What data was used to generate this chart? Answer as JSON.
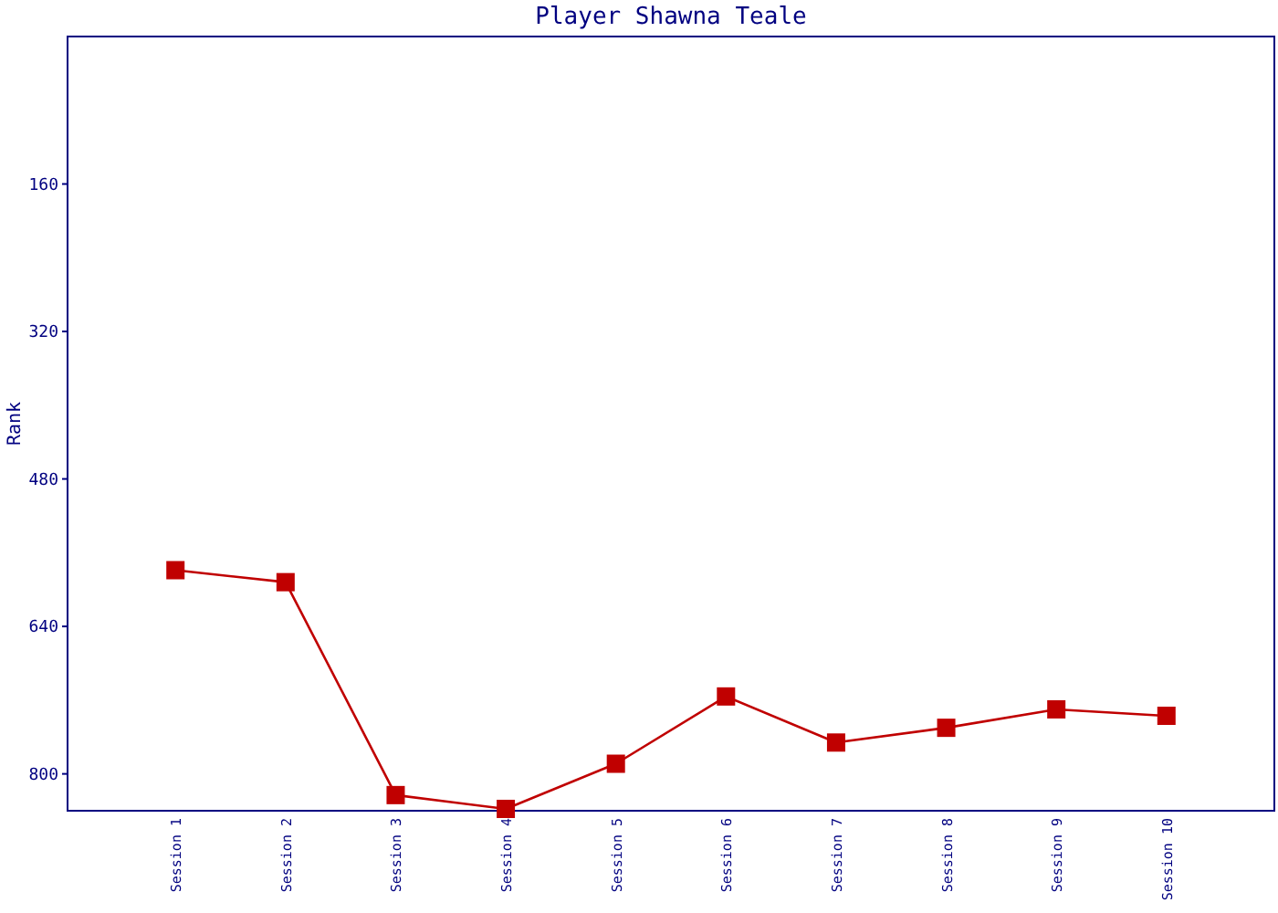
{
  "chart_data": {
    "type": "line",
    "title": "Player Shawna Teale",
    "ylabel": "Rank",
    "categories": [
      "Session 1",
      "Session 2",
      "Session 3",
      "Session 4",
      "Session 5",
      "Session 6",
      "Session 7",
      "Session 8",
      "Session 9",
      "Session 10"
    ],
    "series": [
      {
        "color": "#c00000",
        "values": [
          579,
          592,
          823,
          838,
          789,
          716,
          766,
          750,
          730,
          737
        ]
      }
    ],
    "ylim": [
      840,
      0
    ],
    "yticks": [
      160,
      320,
      480,
      640,
      800
    ],
    "marker": "square",
    "line_style": "solid",
    "grid": false
  }
}
